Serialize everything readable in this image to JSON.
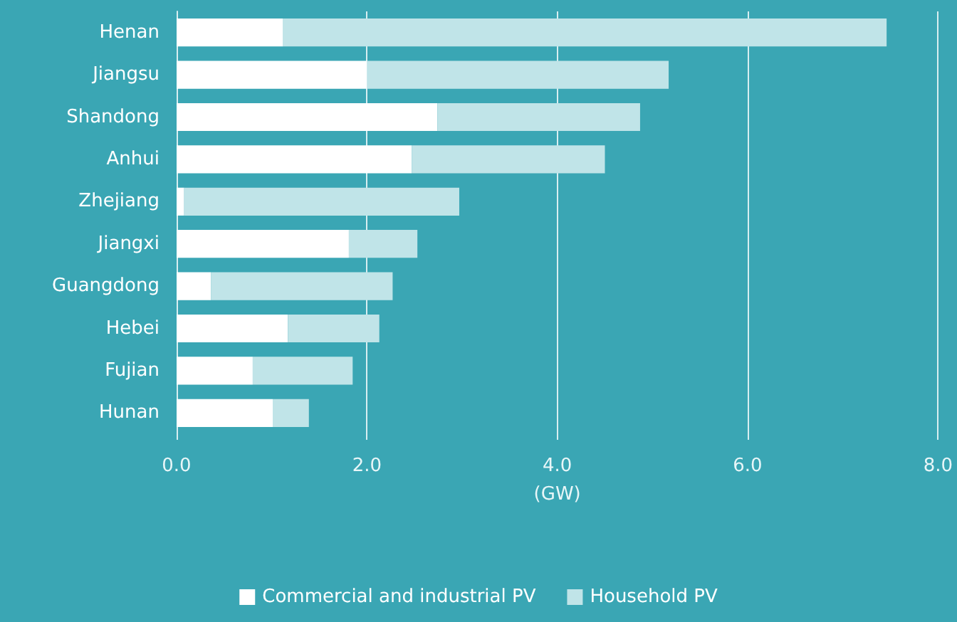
{
  "chart_data": {
    "type": "bar",
    "orientation": "horizontal",
    "stacked": true,
    "xlabel": "(GW)",
    "categories": [
      "Henan",
      "Jiangsu",
      "Shandong",
      "Anhui",
      "Zhejiang",
      "Jiangxi",
      "Guangdong",
      "Hebei",
      "Fujian",
      "Hunan"
    ],
    "series": [
      {
        "name": "Commercial and industrial PV",
        "color": "#ffffff",
        "values": [
          1.12,
          2.0,
          2.74,
          2.47,
          0.08,
          1.81,
          0.36,
          1.17,
          0.8,
          1.01
        ]
      },
      {
        "name": "Household PV",
        "color": "#c0e4e8",
        "values": [
          6.34,
          3.17,
          2.13,
          2.03,
          2.89,
          0.72,
          1.91,
          0.96,
          1.05,
          0.38
        ]
      }
    ],
    "xlim": [
      0,
      8
    ],
    "xticks": [
      {
        "value": 0,
        "label": "0.0"
      },
      {
        "value": 2,
        "label": "2.0"
      },
      {
        "value": 4,
        "label": "4.0"
      },
      {
        "value": 6,
        "label": "6.0"
      },
      {
        "value": 8,
        "label": "8.0"
      }
    ],
    "grid": "x",
    "legend": "bottom"
  }
}
